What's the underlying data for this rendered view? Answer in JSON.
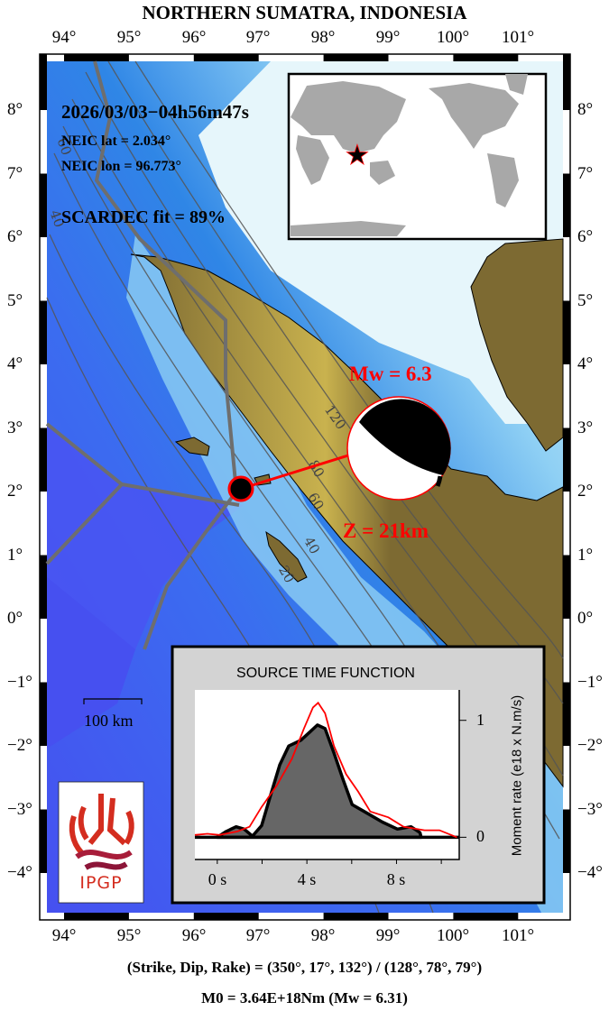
{
  "title": "NORTHERN SUMATRA, INDONESIA",
  "lon_ticks": [
    "94°",
    "95°",
    "96°",
    "97°",
    "98°",
    "99°",
    "100°",
    "101°"
  ],
  "lat_ticks": [
    "8°",
    "7°",
    "6°",
    "5°",
    "4°",
    "3°",
    "2°",
    "1°",
    "0°",
    "−1°",
    "−2°",
    "−3°",
    "−4°"
  ],
  "event": {
    "datetime": "2026/03/03−04h56m47s",
    "neic_lat": "NEIC lat  = 2.034°",
    "neic_lon": "NEIC lon = 96.773°",
    "fit": "SCARDEC fit = 89%",
    "mw_label": "Mw = 6.3",
    "depth_label": "Z =  21km"
  },
  "contour_labels": [
    "120",
    "80",
    "60",
    "40",
    "20",
    "60",
    "40"
  ],
  "scale_bar": "100 km",
  "logo_text": "IPGP",
  "colors": {
    "land": "#7d6a32",
    "highland": "#d8c35a",
    "deep_ocean": "#4650f0",
    "trench": "#2f86e6",
    "shelf": "#8fd0f4",
    "shallow": "#e6f6fb",
    "accent": "#ff0000",
    "stf_fill": "#666666",
    "panel": "#d3d3d3"
  },
  "footer": {
    "mechanism": "(Strike, Dip, Rake) = (350°, 17°, 132°) / (128°, 78°, 79°)",
    "moment": "M0 = 3.64E+18Nm  (Mw = 6.31)"
  },
  "chart_data": {
    "type": "line",
    "title": "SOURCE TIME FUNCTION",
    "ylabel": "Moment rate (e18 x N.m/s)",
    "xlabel": "",
    "xlim": [
      -1.0,
      10.8
    ],
    "ylim": [
      -0.19,
      1.26
    ],
    "x_ticks": [
      0,
      4,
      8
    ],
    "x_tick_labels": [
      "0 s",
      "4 s",
      "8 s"
    ],
    "y_ticks": [
      0,
      1
    ],
    "y_tick_labels": [
      "0",
      "1"
    ],
    "series": [
      {
        "style": "filled-black",
        "points": [
          [
            0.0,
            0
          ],
          [
            0.4,
            0.05
          ],
          [
            0.84,
            0.09
          ],
          [
            1.2,
            0.07
          ],
          [
            1.57,
            0.01
          ],
          [
            1.98,
            0.1
          ],
          [
            2.38,
            0.36
          ],
          [
            2.79,
            0.62
          ],
          [
            3.19,
            0.78
          ],
          [
            3.73,
            0.83
          ],
          [
            4.13,
            0.9
          ],
          [
            4.47,
            0.96
          ],
          [
            4.81,
            0.93
          ],
          [
            5.21,
            0.72
          ],
          [
            5.62,
            0.49
          ],
          [
            6.02,
            0.28
          ],
          [
            6.56,
            0.22
          ],
          [
            7.37,
            0.13
          ],
          [
            8.04,
            0.07
          ],
          [
            8.65,
            0.09
          ],
          [
            9.05,
            0.04
          ],
          [
            9.1,
            0
          ]
        ]
      },
      {
        "style": "red",
        "points": [
          [
            -1.0,
            0.02
          ],
          [
            -0.44,
            0.03
          ],
          [
            0.09,
            0.02
          ],
          [
            0.9,
            0.05
          ],
          [
            1.44,
            0.09
          ],
          [
            1.98,
            0.26
          ],
          [
            2.65,
            0.44
          ],
          [
            3.33,
            0.67
          ],
          [
            3.87,
            0.93
          ],
          [
            4.27,
            1.11
          ],
          [
            4.5,
            1.15
          ],
          [
            4.81,
            1.06
          ],
          [
            5.21,
            0.78
          ],
          [
            5.75,
            0.54
          ],
          [
            6.29,
            0.39
          ],
          [
            6.83,
            0.22
          ],
          [
            7.64,
            0.17
          ],
          [
            8.31,
            0.09
          ],
          [
            9.25,
            0.06
          ],
          [
            9.92,
            0.06
          ],
          [
            10.7,
            0.0
          ]
        ]
      }
    ]
  }
}
